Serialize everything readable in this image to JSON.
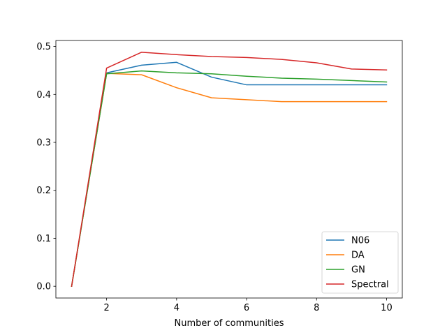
{
  "chart_data": {
    "type": "line",
    "title": "",
    "xlabel": "Number of communities",
    "ylabel": "",
    "xlim": [
      0.55,
      10.45
    ],
    "ylim": [
      -0.0245,
      0.5125
    ],
    "xticks": [
      2,
      4,
      6,
      8,
      10
    ],
    "xtick_labels": [
      "2",
      "4",
      "6",
      "8",
      "10"
    ],
    "yticks": [
      0.0,
      0.1,
      0.2,
      0.3,
      0.4,
      0.5
    ],
    "ytick_labels": [
      "0.0",
      "0.1",
      "0.2",
      "0.3",
      "0.4",
      "0.5"
    ],
    "grid": false,
    "legend_position": "lower-right",
    "x": [
      1,
      2,
      3,
      4,
      5,
      6,
      7,
      8,
      9,
      10
    ],
    "series": [
      {
        "name": "N06",
        "color": "#1f77b4",
        "values": [
          0.0,
          0.445,
          0.461,
          0.467,
          0.436,
          0.42,
          0.42,
          0.42,
          0.42,
          0.42
        ]
      },
      {
        "name": "DA",
        "color": "#ff7f0e",
        "values": [
          0.0,
          0.444,
          0.441,
          0.414,
          0.393,
          0.389,
          0.385,
          0.385,
          0.385,
          0.385
        ]
      },
      {
        "name": "GN",
        "color": "#2ca02c",
        "values": [
          0.0,
          0.443,
          0.449,
          0.445,
          0.443,
          0.438,
          0.434,
          0.432,
          0.429,
          0.426
        ]
      },
      {
        "name": "Spectral",
        "color": "#d62728",
        "values": [
          0.0,
          0.455,
          0.488,
          0.483,
          0.479,
          0.477,
          0.473,
          0.466,
          0.453,
          0.451
        ]
      }
    ]
  }
}
